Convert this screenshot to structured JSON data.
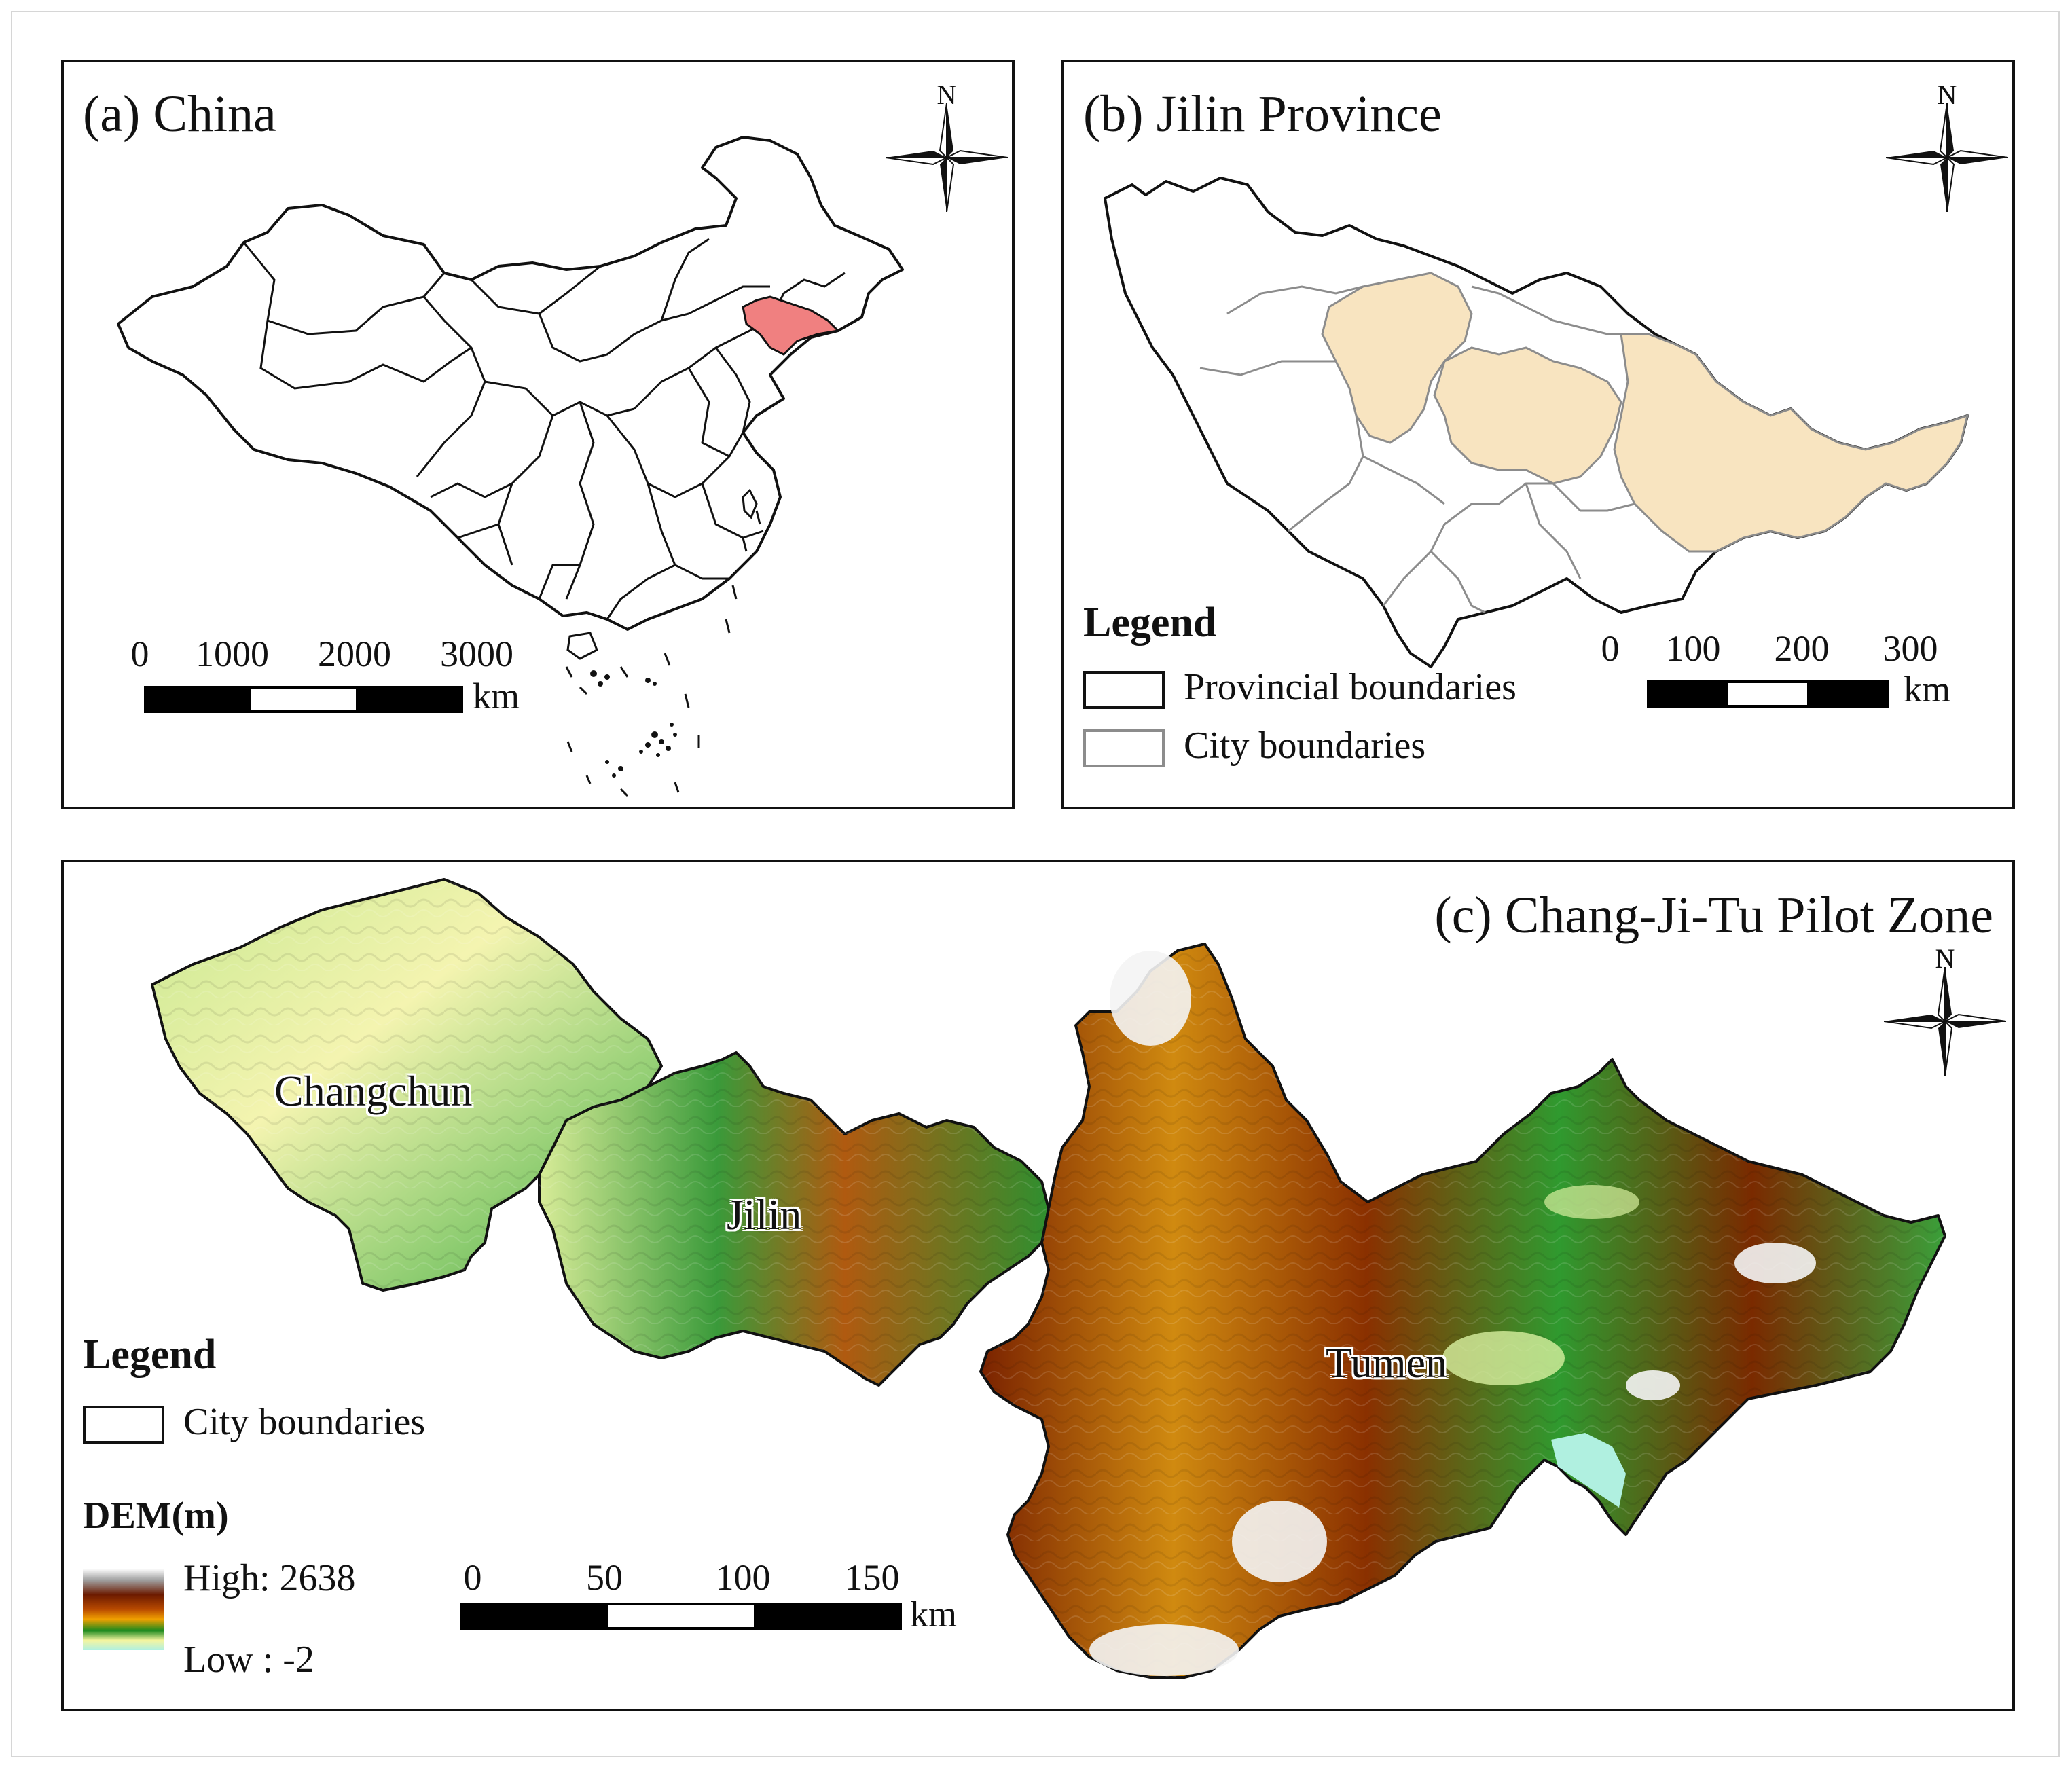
{
  "panel_a": {
    "title": "(a) China",
    "north": "N",
    "scale_ticks": [
      "0",
      "1000",
      "2000",
      "3000"
    ],
    "scale_unit": "km",
    "highlight_color": "#f08080"
  },
  "panel_b": {
    "title": "(b) Jilin Province",
    "north": "N",
    "legend_title": "Legend",
    "legend_items": [
      {
        "label": "Provincial boundaries",
        "color": "#111111"
      },
      {
        "label": "City boundaries",
        "color": "#8c8c8c"
      }
    ],
    "scale_ticks": [
      "0",
      "100",
      "200",
      "300"
    ],
    "scale_unit": "km",
    "highlight_color": "#f8e4c0"
  },
  "panel_c": {
    "title": "(c) Chang-Ji-Tu Pilot Zone",
    "north": "N",
    "cities": [
      "Changchun",
      "Jilin",
      "Tumen"
    ],
    "legend_title": "Legend",
    "legend_boundary_label": "City boundaries",
    "dem_title": "DEM(m)",
    "dem_high": "High: 2638",
    "dem_low": "Low : -2",
    "dem_colors": [
      "#ffffff",
      "#a0a0a0",
      "#6b1a00",
      "#b84a00",
      "#f0a000",
      "#1e8a1e",
      "#f5f5a0",
      "#b0f0e0"
    ],
    "scale_ticks": [
      "0",
      "50",
      "100",
      "150"
    ],
    "scale_unit": "km"
  }
}
